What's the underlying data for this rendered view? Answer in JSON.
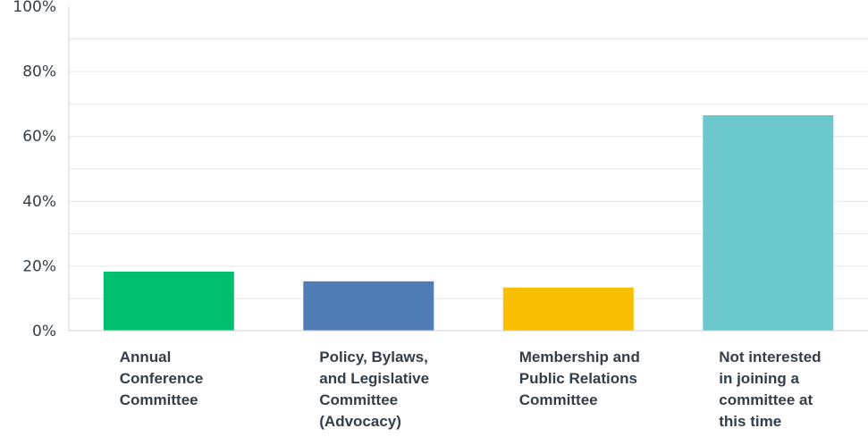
{
  "chart_data": {
    "type": "bar",
    "categories": [
      "Annual\nConference\nCommittee",
      "Policy, Bylaws,\nand Legislative\nCommittee\n(Advocacy)",
      "Membership and\nPublic Relations\nCommittee",
      "Not interested\nin joining a\ncommittee at\nthis time"
    ],
    "values": [
      18.2,
      15.2,
      13.3,
      66.4
    ],
    "colors": [
      "#00bf6f",
      "#507cb6",
      "#f9be00",
      "#6bc8cd"
    ],
    "ylim": [
      0,
      100
    ],
    "yticks": [
      0,
      20,
      40,
      60,
      80,
      100
    ],
    "ytick_labels": [
      "0%",
      "20%",
      "40%",
      "60%",
      "80%",
      "100%"
    ],
    "grid": true,
    "title": "",
    "xlabel": "",
    "ylabel": ""
  }
}
